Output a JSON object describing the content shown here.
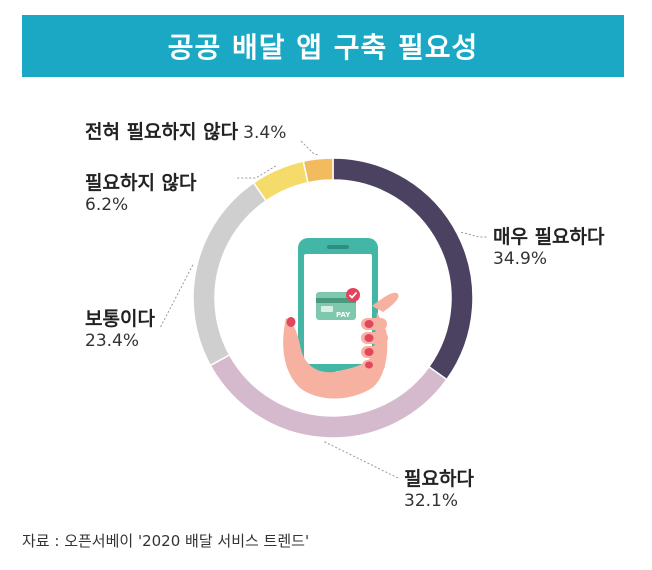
{
  "title": "공공 배달 앱 구축 필요성",
  "source": "자료 : 오픈서베이 '2020 배달 서비스 트렌드'",
  "colors": {
    "title_bg": "#1aa8c4",
    "leader": "#999999"
  },
  "illustration": {
    "card_label": "PAY",
    "icons": [
      "hand-icon",
      "smartphone-icon",
      "payment-card-icon",
      "checkmark-icon"
    ]
  },
  "chart_data": {
    "type": "pie",
    "donut": true,
    "categories": [
      "매우 필요하다",
      "필요하다",
      "보통이다",
      "필요하지 않다",
      "전혀 필요하지 않다"
    ],
    "values": [
      34.9,
      32.1,
      23.4,
      6.2,
      3.4
    ],
    "value_labels": [
      "34.9%",
      "32.1%",
      "23.4%",
      "6.2%",
      "3.4%"
    ],
    "colors": [
      "#4b4262",
      "#d5b9cd",
      "#cfcfcf",
      "#f5dc6a",
      "#f2bb5e"
    ],
    "start_angle_deg": 0,
    "direction": "clockwise"
  }
}
